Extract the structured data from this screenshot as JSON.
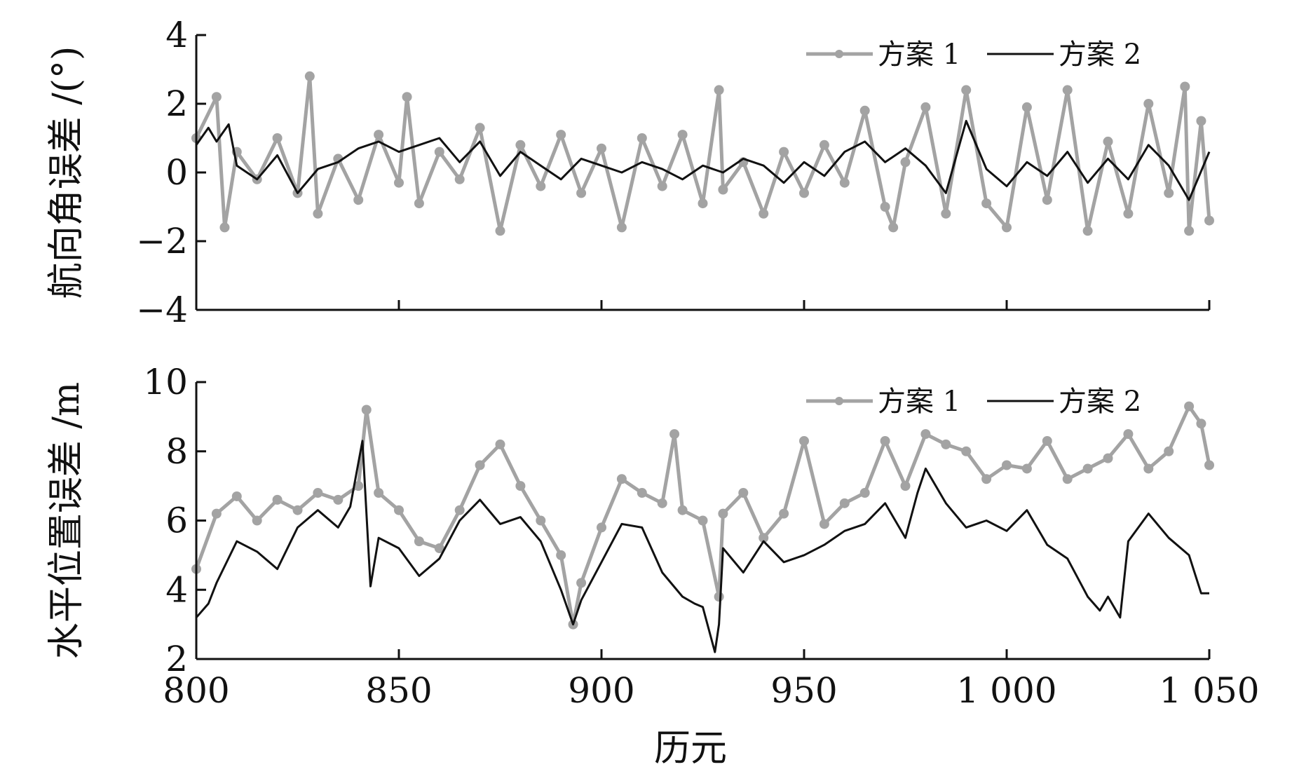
{
  "colors": {
    "scheme1": "#a3a3a3",
    "scheme2": "#111111",
    "axis": "#111111"
  },
  "xlabel": "历元",
  "chart_data": [
    {
      "type": "line",
      "ylabel": "航向角误差 /(°)",
      "xlim": [
        800,
        1050
      ],
      "ylim": [
        -4,
        4
      ],
      "x_ticks": [
        800,
        850,
        900,
        950,
        1000,
        1050
      ],
      "x_tick_labels": [
        "800",
        "850",
        "900",
        "950",
        "1 000",
        "1 050"
      ],
      "y_ticks": [
        -4,
        -2,
        0,
        2,
        4
      ],
      "y_tick_labels": [
        "−4",
        "−2",
        "0",
        "2",
        "4"
      ],
      "legend": {
        "position": "top-right",
        "entries": [
          "方案 1",
          "方案 2"
        ]
      },
      "series": [
        {
          "name": "方案 1",
          "markers": true,
          "x": [
            800,
            805,
            807,
            810,
            815,
            820,
            825,
            828,
            830,
            835,
            840,
            845,
            850,
            852,
            855,
            860,
            865,
            870,
            875,
            880,
            885,
            890,
            895,
            900,
            905,
            910,
            915,
            920,
            925,
            929,
            930,
            935,
            940,
            945,
            950,
            955,
            960,
            965,
            970,
            972,
            975,
            980,
            985,
            990,
            995,
            1000,
            1005,
            1010,
            1015,
            1020,
            1025,
            1030,
            1035,
            1040,
            1044,
            1045,
            1048,
            1050
          ],
          "y": [
            1.0,
            2.2,
            -1.6,
            0.6,
            -0.2,
            1.0,
            -0.6,
            2.8,
            -1.2,
            0.4,
            -0.8,
            1.1,
            -0.3,
            2.2,
            -0.9,
            0.6,
            -0.2,
            1.3,
            -1.7,
            0.8,
            -0.4,
            1.1,
            -0.6,
            0.7,
            -1.6,
            1.0,
            -0.4,
            1.1,
            -0.9,
            2.4,
            -0.5,
            0.3,
            -1.2,
            0.6,
            -0.6,
            0.8,
            -0.3,
            1.8,
            -1.0,
            -1.6,
            0.3,
            1.9,
            -1.2,
            2.4,
            -0.9,
            -1.6,
            1.9,
            -0.8,
            2.4,
            -1.7,
            0.9,
            -1.2,
            2.0,
            -0.6,
            2.5,
            -1.7,
            1.5,
            -1.4
          ]
        },
        {
          "name": "方案 2",
          "markers": false,
          "x": [
            800,
            803,
            805,
            808,
            810,
            815,
            820,
            825,
            830,
            835,
            840,
            845,
            850,
            855,
            860,
            865,
            870,
            875,
            880,
            885,
            890,
            895,
            900,
            905,
            910,
            915,
            920,
            925,
            930,
            935,
            940,
            945,
            950,
            955,
            960,
            965,
            970,
            975,
            980,
            985,
            990,
            995,
            1000,
            1005,
            1010,
            1015,
            1020,
            1025,
            1030,
            1035,
            1040,
            1045,
            1050
          ],
          "y": [
            0.8,
            1.3,
            0.9,
            1.4,
            0.2,
            -0.2,
            0.5,
            -0.6,
            0.1,
            0.3,
            0.7,
            0.9,
            0.6,
            0.8,
            1.0,
            0.3,
            0.9,
            -0.1,
            0.6,
            0.2,
            -0.2,
            0.4,
            0.2,
            0.0,
            0.3,
            0.1,
            -0.2,
            0.2,
            0.0,
            0.4,
            0.2,
            -0.3,
            0.3,
            -0.1,
            0.6,
            0.9,
            0.3,
            0.7,
            0.2,
            -0.6,
            1.5,
            0.1,
            -0.4,
            0.3,
            -0.1,
            0.6,
            -0.3,
            0.4,
            -0.2,
            0.8,
            0.2,
            -0.8,
            0.6
          ]
        }
      ]
    },
    {
      "type": "line",
      "ylabel": "水平位置误差 /m",
      "xlim": [
        800,
        1050
      ],
      "ylim": [
        2,
        10
      ],
      "x_ticks": [
        800,
        850,
        900,
        950,
        1000,
        1050
      ],
      "x_tick_labels": [
        "800",
        "850",
        "900",
        "950",
        "1 000",
        "1 050"
      ],
      "y_ticks": [
        2,
        4,
        6,
        8,
        10
      ],
      "y_tick_labels": [
        "2",
        "4",
        "6",
        "8",
        "10"
      ],
      "legend": {
        "position": "top-right",
        "entries": [
          "方案 1",
          "方案 2"
        ]
      },
      "series": [
        {
          "name": "方案 1",
          "markers": true,
          "x": [
            800,
            805,
            810,
            815,
            820,
            825,
            830,
            835,
            840,
            842,
            845,
            850,
            855,
            860,
            865,
            870,
            875,
            880,
            885,
            890,
            893,
            895,
            900,
            905,
            910,
            915,
            918,
            920,
            925,
            929,
            930,
            935,
            940,
            945,
            950,
            955,
            960,
            965,
            970,
            975,
            980,
            985,
            990,
            995,
            1000,
            1005,
            1010,
            1015,
            1020,
            1025,
            1030,
            1035,
            1040,
            1045,
            1048,
            1050
          ],
          "y": [
            4.6,
            6.2,
            6.7,
            6.0,
            6.6,
            6.3,
            6.8,
            6.6,
            7.0,
            9.2,
            6.8,
            6.3,
            5.4,
            5.2,
            6.3,
            7.6,
            8.2,
            7.0,
            6.0,
            5.0,
            3.0,
            4.2,
            5.8,
            7.2,
            6.8,
            6.5,
            8.5,
            6.3,
            6.0,
            3.8,
            6.2,
            6.8,
            5.5,
            6.2,
            8.3,
            5.9,
            6.5,
            6.8,
            8.3,
            7.0,
            8.5,
            8.2,
            8.0,
            7.2,
            7.6,
            7.5,
            8.3,
            7.2,
            7.5,
            7.8,
            8.5,
            7.5,
            8.0,
            9.3,
            8.8,
            7.6
          ]
        },
        {
          "name": "方案 2",
          "markers": false,
          "x": [
            800,
            803,
            805,
            810,
            815,
            820,
            825,
            830,
            835,
            838,
            841,
            843,
            845,
            850,
            855,
            860,
            865,
            870,
            875,
            880,
            885,
            890,
            893,
            895,
            900,
            905,
            910,
            915,
            920,
            923,
            925,
            928,
            929,
            930,
            935,
            940,
            945,
            950,
            955,
            960,
            965,
            970,
            975,
            978,
            980,
            985,
            990,
            995,
            1000,
            1005,
            1010,
            1015,
            1020,
            1023,
            1025,
            1028,
            1030,
            1035,
            1040,
            1045,
            1048,
            1050
          ],
          "y": [
            3.2,
            3.6,
            4.2,
            5.4,
            5.1,
            4.6,
            5.8,
            6.3,
            5.8,
            6.4,
            8.3,
            4.1,
            5.5,
            5.2,
            4.4,
            4.9,
            6.0,
            6.6,
            5.9,
            6.1,
            5.4,
            4.0,
            3.0,
            3.7,
            4.8,
            5.9,
            5.8,
            4.5,
            3.8,
            3.6,
            3.5,
            2.2,
            3.0,
            5.2,
            4.5,
            5.4,
            4.8,
            5.0,
            5.3,
            5.7,
            5.9,
            6.5,
            5.5,
            6.8,
            7.5,
            6.5,
            5.8,
            6.0,
            5.7,
            6.3,
            5.3,
            4.9,
            3.8,
            3.4,
            3.8,
            3.2,
            5.4,
            6.2,
            5.5,
            5.0,
            3.9,
            3.9
          ]
        }
      ]
    }
  ]
}
